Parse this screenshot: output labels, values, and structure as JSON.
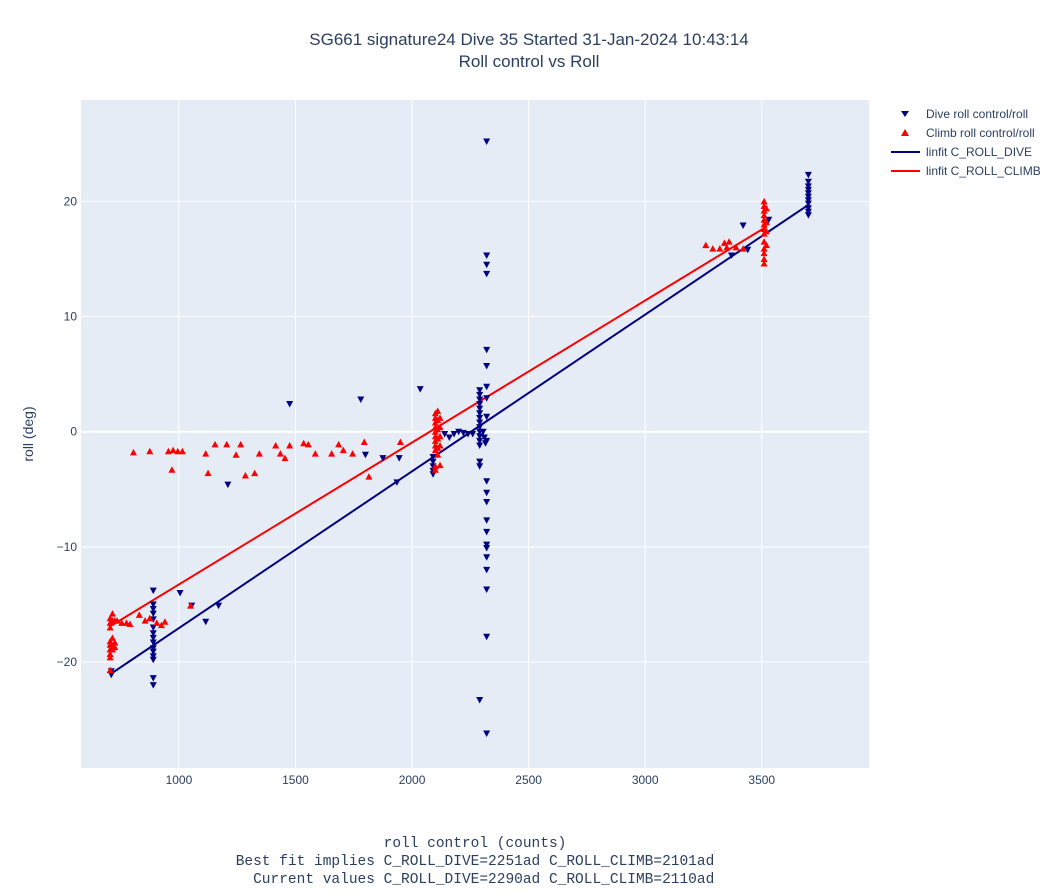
{
  "title_line1": "SG661 signature24 Dive 35 Started 31-Jan-2024 10:43:14",
  "title_line2": "Roll control vs Roll",
  "xlabel_lines": [
    "roll control (counts)",
    "Best fit implies C_ROLL_DIVE=2251ad C_ROLL_CLIMB=2101ad",
    "  Current values C_ROLL_DIVE=2290ad C_ROLL_CLIMB=2110ad"
  ],
  "ylabel": "roll (deg)",
  "legend": [
    {
      "label": "Dive roll control/roll",
      "color": "#000080",
      "symbol": "triangle-down"
    },
    {
      "label": "Climb roll control/roll",
      "color": "#ff0000",
      "symbol": "triangle-up"
    },
    {
      "label": "linfit C_ROLL_DIVE",
      "color": "#000080",
      "symbol": "line"
    },
    {
      "label": "linfit C_ROLL_CLIMB",
      "color": "#ff0000",
      "symbol": "line"
    }
  ],
  "chart_data": {
    "type": "scatter",
    "title": "SG661 signature24 Dive 35 Started 31-Jan-2024 10:43:14 / Roll control vs Roll",
    "xlabel": "roll control (counts)",
    "ylabel": "roll (deg)",
    "xlim": [
      580,
      3960
    ],
    "ylim": [
      -29.2,
      28.8
    ],
    "xticks": [
      1000,
      1500,
      2000,
      2500,
      3000,
      3500
    ],
    "yticks": [
      -20,
      -10,
      0,
      10,
      20
    ],
    "grid": true,
    "legend_position": "top-right outside",
    "plot_bgcolor": "#e5ecf6",
    "series": [
      {
        "name": "Dive roll control/roll",
        "color": "#000080",
        "marker": "triangle-down",
        "points": [
          [
            710,
            -20.8
          ],
          [
            710,
            -21.1
          ],
          [
            890,
            -13.8
          ],
          [
            890,
            -15.0
          ],
          [
            890,
            -15.4
          ],
          [
            890,
            -15.8
          ],
          [
            890,
            -16.3
          ],
          [
            890,
            -17.0
          ],
          [
            890,
            -17.5
          ],
          [
            890,
            -17.9
          ],
          [
            890,
            -18.3
          ],
          [
            890,
            -18.8
          ],
          [
            890,
            -19.1
          ],
          [
            890,
            -19.5
          ],
          [
            890,
            -19.8
          ],
          [
            890,
            -21.4
          ],
          [
            890,
            -22.0
          ],
          [
            1005,
            -14.0
          ],
          [
            1055,
            -15.1
          ],
          [
            1115,
            -16.5
          ],
          [
            1170,
            -15.1
          ],
          [
            1210,
            -4.6
          ],
          [
            1475,
            2.4
          ],
          [
            1780,
            2.8
          ],
          [
            1800,
            -2.0
          ],
          [
            1875,
            -2.3
          ],
          [
            1945,
            -2.3
          ],
          [
            1935,
            -4.4
          ],
          [
            2035,
            3.7
          ],
          [
            2090,
            -2.2
          ],
          [
            2090,
            -2.6
          ],
          [
            2090,
            -3.0
          ],
          [
            2090,
            -3.4
          ],
          [
            2090,
            -3.7
          ],
          [
            2140,
            -0.2
          ],
          [
            2160,
            -0.5
          ],
          [
            2180,
            -0.2
          ],
          [
            2200,
            0.0
          ],
          [
            2220,
            -0.1
          ],
          [
            2240,
            -0.2
          ],
          [
            2260,
            -0.2
          ],
          [
            2290,
            3.6
          ],
          [
            2290,
            3.2
          ],
          [
            2290,
            2.8
          ],
          [
            2290,
            2.4
          ],
          [
            2290,
            2.0
          ],
          [
            2290,
            1.6
          ],
          [
            2290,
            1.2
          ],
          [
            2290,
            0.8
          ],
          [
            2290,
            0.4
          ],
          [
            2290,
            0.0
          ],
          [
            2290,
            -0.4
          ],
          [
            2290,
            -0.8
          ],
          [
            2290,
            -1.2
          ],
          [
            2290,
            -2.6
          ],
          [
            2290,
            -3.0
          ],
          [
            2290,
            -23.3
          ],
          [
            2305,
            0.0
          ],
          [
            2310,
            -0.5
          ],
          [
            2315,
            -1.0
          ],
          [
            2320,
            25.2
          ],
          [
            2320,
            15.3
          ],
          [
            2320,
            14.5
          ],
          [
            2320,
            13.7
          ],
          [
            2320,
            7.1
          ],
          [
            2320,
            5.7
          ],
          [
            2320,
            3.9
          ],
          [
            2320,
            2.9
          ],
          [
            2320,
            1.3
          ],
          [
            2320,
            -0.8
          ],
          [
            2320,
            -4.3
          ],
          [
            2320,
            -5.3
          ],
          [
            2320,
            -6.1
          ],
          [
            2320,
            -7.7
          ],
          [
            2320,
            -8.7
          ],
          [
            2320,
            -9.8
          ],
          [
            2320,
            -10.1
          ],
          [
            2320,
            -10.9
          ],
          [
            2320,
            -12.0
          ],
          [
            2320,
            -13.7
          ],
          [
            2320,
            -17.8
          ],
          [
            2320,
            -26.2
          ],
          [
            3370,
            15.3
          ],
          [
            3420,
            17.9
          ],
          [
            3440,
            15.8
          ],
          [
            3530,
            18.4
          ],
          [
            3700,
            22.3
          ],
          [
            3700,
            21.7
          ],
          [
            3700,
            21.3
          ],
          [
            3700,
            21.0
          ],
          [
            3700,
            20.7
          ],
          [
            3700,
            20.4
          ],
          [
            3700,
            20.1
          ],
          [
            3700,
            19.8
          ],
          [
            3700,
            19.4
          ],
          [
            3700,
            19.1
          ],
          [
            3700,
            18.8
          ]
        ]
      },
      {
        "name": "Climb roll control/roll",
        "color": "#ff0000",
        "marker": "triangle-up",
        "points": [
          [
            705,
            -16.2
          ],
          [
            705,
            -16.6
          ],
          [
            705,
            -17.0
          ],
          [
            705,
            -18.2
          ],
          [
            705,
            -18.5
          ],
          [
            705,
            -18.9
          ],
          [
            705,
            -19.3
          ],
          [
            705,
            -19.6
          ],
          [
            705,
            -20.7
          ],
          [
            715,
            -15.8
          ],
          [
            715,
            -16.4
          ],
          [
            715,
            -17.9
          ],
          [
            715,
            -18.6
          ],
          [
            715,
            -18.9
          ],
          [
            725,
            -16.4
          ],
          [
            725,
            -18.3
          ],
          [
            725,
            -18.7
          ],
          [
            735,
            -16.4
          ],
          [
            755,
            -16.6
          ],
          [
            775,
            -16.6
          ],
          [
            790,
            -16.7
          ],
          [
            830,
            -15.9
          ],
          [
            855,
            -16.4
          ],
          [
            875,
            -16.2
          ],
          [
            905,
            -16.6
          ],
          [
            925,
            -16.8
          ],
          [
            940,
            -16.5
          ],
          [
            1050,
            -15.1
          ],
          [
            805,
            -1.8
          ],
          [
            875,
            -1.7
          ],
          [
            955,
            -1.7
          ],
          [
            975,
            -1.6
          ],
          [
            995,
            -1.7
          ],
          [
            1015,
            -1.7
          ],
          [
            970,
            -3.3
          ],
          [
            1115,
            -1.9
          ],
          [
            1125,
            -3.6
          ],
          [
            1155,
            -1.1
          ],
          [
            1205,
            -1.1
          ],
          [
            1245,
            -2.0
          ],
          [
            1265,
            -1.1
          ],
          [
            1285,
            -3.8
          ],
          [
            1325,
            -3.6
          ],
          [
            1345,
            -1.9
          ],
          [
            1415,
            -1.2
          ],
          [
            1435,
            -1.9
          ],
          [
            1455,
            -2.3
          ],
          [
            1475,
            -1.2
          ],
          [
            1535,
            -1.0
          ],
          [
            1555,
            -1.1
          ],
          [
            1585,
            -1.9
          ],
          [
            1655,
            -1.9
          ],
          [
            1685,
            -1.1
          ],
          [
            1705,
            -1.6
          ],
          [
            1745,
            -1.9
          ],
          [
            1795,
            -0.9
          ],
          [
            1815,
            -3.9
          ],
          [
            1950,
            -0.9
          ],
          [
            2100,
            1.6
          ],
          [
            2100,
            1.2
          ],
          [
            2100,
            0.8
          ],
          [
            2100,
            0.4
          ],
          [
            2100,
            0.0
          ],
          [
            2100,
            -0.4
          ],
          [
            2100,
            -0.8
          ],
          [
            2100,
            -1.2
          ],
          [
            2100,
            -1.6
          ],
          [
            2100,
            -3.0
          ],
          [
            2100,
            -3.3
          ],
          [
            2110,
            1.8
          ],
          [
            2110,
            1.0
          ],
          [
            2110,
            0.2
          ],
          [
            2110,
            -0.6
          ],
          [
            2110,
            -1.4
          ],
          [
            2110,
            -2.0
          ],
          [
            2120,
            1.2
          ],
          [
            2120,
            0.4
          ],
          [
            2120,
            -0.4
          ],
          [
            2120,
            -1.2
          ],
          [
            2120,
            -2.9
          ],
          [
            3260,
            16.2
          ],
          [
            3290,
            15.9
          ],
          [
            3320,
            15.9
          ],
          [
            3340,
            16.4
          ],
          [
            3350,
            16.0
          ],
          [
            3360,
            16.5
          ],
          [
            3390,
            16.0
          ],
          [
            3420,
            15.9
          ],
          [
            3510,
            20.0
          ],
          [
            3510,
            19.6
          ],
          [
            3510,
            19.2
          ],
          [
            3510,
            18.8
          ],
          [
            3510,
            18.4
          ],
          [
            3510,
            18.0
          ],
          [
            3510,
            17.6
          ],
          [
            3510,
            17.2
          ],
          [
            3510,
            16.5
          ],
          [
            3510,
            15.9
          ],
          [
            3510,
            15.5
          ],
          [
            3510,
            15.0
          ],
          [
            3510,
            14.6
          ],
          [
            3520,
            19.4
          ],
          [
            3520,
            18.2
          ],
          [
            3520,
            17.4
          ],
          [
            3520,
            16.2
          ]
        ]
      },
      {
        "name": "linfit C_ROLL_DIVE",
        "color": "#000080",
        "marker": "line",
        "points": [
          [
            710,
            -21.0
          ],
          [
            3700,
            19.7
          ]
        ]
      },
      {
        "name": "linfit C_ROLL_CLIMB",
        "color": "#ff0000",
        "marker": "line",
        "points": [
          [
            705,
            -16.9
          ],
          [
            3520,
            17.8
          ]
        ]
      }
    ]
  }
}
